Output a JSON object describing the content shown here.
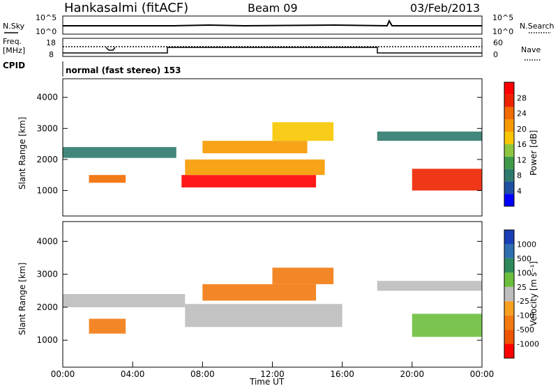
{
  "header": {
    "station": "Hankasalmi (fitACF)",
    "beam": "Beam 09",
    "date": "03/Feb/2013"
  },
  "noise_panel": {
    "left_label": "N.Sky",
    "left_ticks": [
      "10^5",
      "10^0"
    ],
    "right_label": "N.Search",
    "right_ticks": [
      "10^5",
      "10^0"
    ]
  },
  "freq_panel": {
    "left_label_line1": "Freq.",
    "left_label_line2": "[MHz]",
    "left_ticks": [
      "18",
      "8"
    ],
    "right_label": "Nave",
    "right_ticks": [
      "60",
      "0"
    ]
  },
  "cpid": {
    "label": "CPID",
    "value": "normal (fast stereo) 153"
  },
  "power_panel": {
    "ylabel": "Slant Range [km]",
    "yticks": [
      "4000",
      "3000",
      "2000",
      "1000"
    ],
    "colorbar_label": "Power [dB]",
    "colorbar_ticks": [
      "28",
      "24",
      "20",
      "16",
      "12",
      "8",
      "4"
    ],
    "colors": [
      "#0000ff",
      "#1e4fa0",
      "#2f7a6e",
      "#3f9a4a",
      "#8cc63f",
      "#f7c600",
      "#f79a00",
      "#f26b00",
      "#ee2200",
      "#ff0000"
    ]
  },
  "velocity_panel": {
    "ylabel": "Slant Range [km]",
    "yticks": [
      "4000",
      "3000",
      "2000",
      "1000"
    ],
    "colorbar_label": "Velocity [m s⁻¹]",
    "colorbar_ticks": [
      "1000",
      "500",
      "100",
      "25",
      "-25",
      "-100",
      "-500",
      "-1000"
    ],
    "colors": [
      "#1a3fb5",
      "#2f6fb0",
      "#2e8a5a",
      "#6cbf3c",
      "#bdbdbd",
      "#f7a020",
      "#f27a10",
      "#ee5500",
      "#ff0000"
    ]
  },
  "xaxis": {
    "label": "Time UT",
    "ticks": [
      "00:00",
      "04:00",
      "08:00",
      "12:00",
      "16:00",
      "20:00",
      "00:00"
    ]
  },
  "chart_data": {
    "type": "heatmap",
    "x_range_hours": [
      0,
      24
    ],
    "y_range_km": [
      180,
      4600
    ],
    "power_bands": [
      {
        "t0": 0.0,
        "t1": 6.5,
        "r0": 2050,
        "r1": 2400,
        "power_db": 6
      },
      {
        "t0": 1.5,
        "t1": 3.6,
        "r0": 1250,
        "r1": 1500,
        "power_db": 22
      },
      {
        "t0": 6.8,
        "t1": 14.5,
        "r0": 1100,
        "r1": 1500,
        "power_db": 28
      },
      {
        "t0": 7.0,
        "t1": 15.0,
        "r0": 1500,
        "r1": 2000,
        "power_db": 18
      },
      {
        "t0": 8.0,
        "t1": 14.0,
        "r0": 2200,
        "r1": 2600,
        "power_db": 20
      },
      {
        "t0": 12.0,
        "t1": 15.5,
        "r0": 2600,
        "r1": 3200,
        "power_db": 16
      },
      {
        "t0": 18.0,
        "t1": 24.0,
        "r0": 2600,
        "r1": 2900,
        "power_db": 6
      },
      {
        "t0": 20.0,
        "t1": 24.0,
        "r0": 1000,
        "r1": 1700,
        "power_db": 26
      }
    ],
    "velocity_bands": [
      {
        "t0": 0.0,
        "t1": 7.0,
        "r0": 2000,
        "r1": 2400,
        "velocity": 0
      },
      {
        "t0": 1.5,
        "t1": 3.6,
        "r0": 1200,
        "r1": 1650,
        "velocity": -200
      },
      {
        "t0": 7.0,
        "t1": 16.0,
        "r0": 1400,
        "r1": 2100,
        "velocity": 0
      },
      {
        "t0": 8.0,
        "t1": 14.5,
        "r0": 2200,
        "r1": 2700,
        "velocity": -300
      },
      {
        "t0": 12.0,
        "t1": 15.5,
        "r0": 2700,
        "r1": 3200,
        "velocity": -300
      },
      {
        "t0": 18.0,
        "t1": 24.0,
        "r0": 2500,
        "r1": 2800,
        "velocity": 0
      },
      {
        "t0": 20.0,
        "t1": 24.0,
        "r0": 1100,
        "r1": 1800,
        "velocity": 60
      }
    ]
  }
}
